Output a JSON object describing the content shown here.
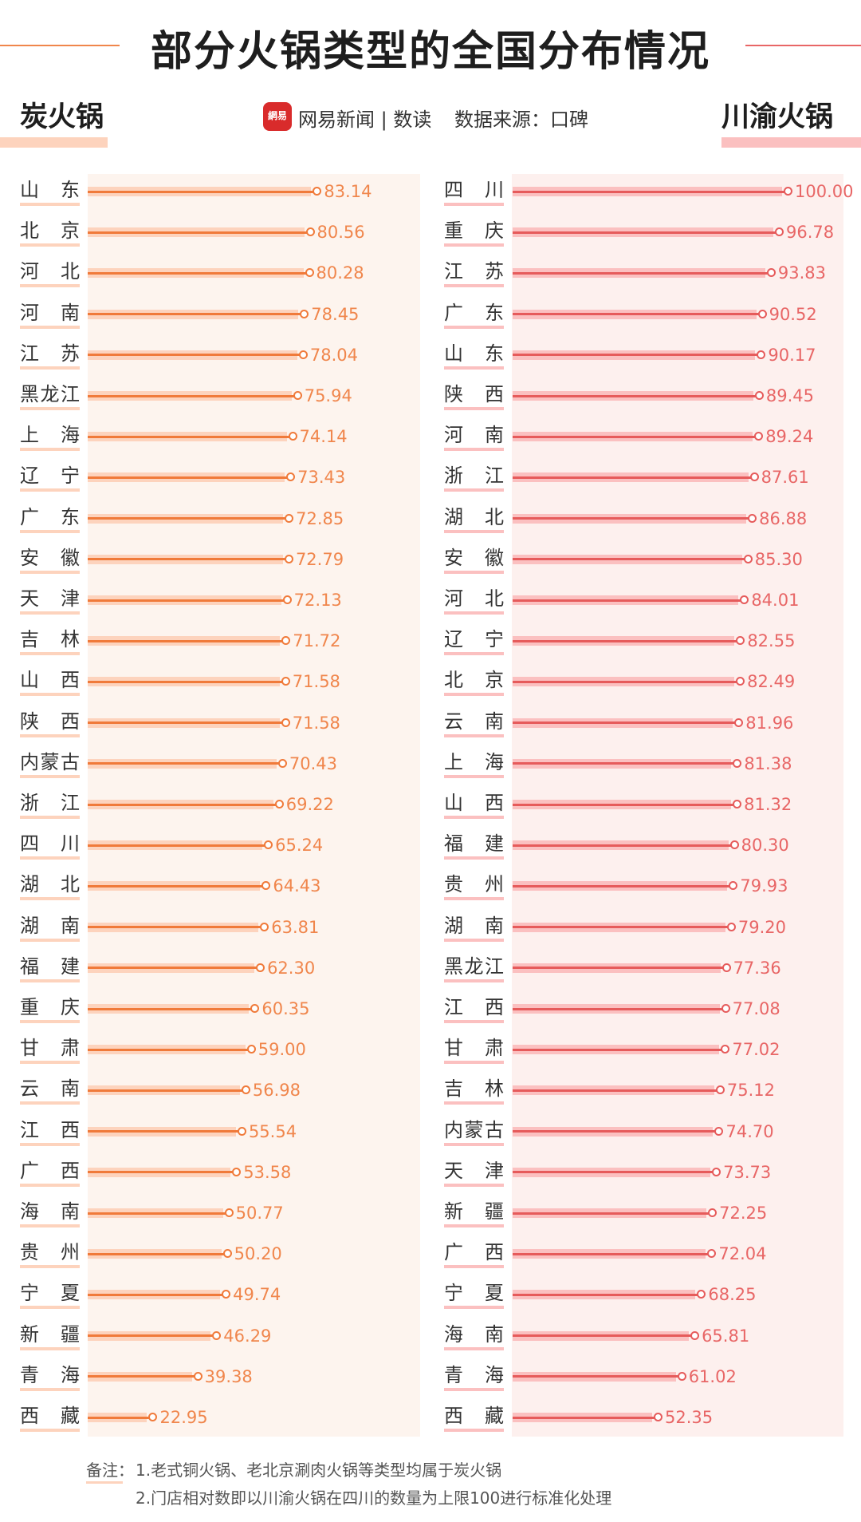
{
  "header": {
    "title": "部分火锅类型的全国分布情况",
    "brand": "网易新闻 | 数读",
    "logo_text": "網易",
    "source": "数据来源：口碑"
  },
  "colors": {
    "left_line": "#f07a3a",
    "left_band": "#fdd3bd",
    "left_text": "#f0864c",
    "left_panel": "#fdf4ee",
    "right_line": "#e65b5b",
    "right_band": "#fbc0c0",
    "right_text": "#e86666",
    "right_panel": "#fdf0ee",
    "title_line_left": "#f0864c",
    "title_line_right": "#e86666"
  },
  "chart_data": [
    {
      "type": "bar",
      "title": "炭火锅",
      "orientation": "horizontal",
      "xlim": [
        0,
        100
      ],
      "categories": [
        "山东",
        "北京",
        "河北",
        "河南",
        "江苏",
        "黑龙江",
        "上海",
        "辽宁",
        "广东",
        "安徽",
        "天津",
        "吉林",
        "山西",
        "陕西",
        "内蒙古",
        "浙江",
        "四川",
        "湖北",
        "湖南",
        "福建",
        "重庆",
        "甘肃",
        "云南",
        "江西",
        "广西",
        "海南",
        "贵州",
        "宁夏",
        "新疆",
        "青海",
        "西藏"
      ],
      "values": [
        83.14,
        80.56,
        80.28,
        78.45,
        78.04,
        75.94,
        74.14,
        73.43,
        72.85,
        72.79,
        72.13,
        71.72,
        71.58,
        71.58,
        70.43,
        69.22,
        65.24,
        64.43,
        63.81,
        62.3,
        60.35,
        59.0,
        56.98,
        55.54,
        53.58,
        50.77,
        50.2,
        49.74,
        46.29,
        39.38,
        22.95
      ],
      "labels": [
        "83.14",
        "80.56",
        "80.28",
        "78.45",
        "78.04",
        "75.94",
        "74.14",
        "73.43",
        "72.85",
        "72.79",
        "72.13",
        "71.72",
        "71.58",
        "71.58",
        "70.43",
        "69.22",
        "65.24",
        "64.43",
        "63.81",
        "62.30",
        "60.35",
        "59.00",
        "56.98",
        "55.54",
        "53.58",
        "50.77",
        "50.20",
        "49.74",
        "46.29",
        "39.38",
        "22.95"
      ]
    },
    {
      "type": "bar",
      "title": "川渝火锅",
      "orientation": "horizontal",
      "xlim": [
        0,
        100
      ],
      "categories": [
        "四川",
        "重庆",
        "江苏",
        "广东",
        "山东",
        "陕西",
        "河南",
        "浙江",
        "湖北",
        "安徽",
        "河北",
        "辽宁",
        "北京",
        "云南",
        "上海",
        "山西",
        "福建",
        "贵州",
        "湖南",
        "黑龙江",
        "江西",
        "甘肃",
        "吉林",
        "内蒙古",
        "天津",
        "新疆",
        "广西",
        "宁夏",
        "海南",
        "青海",
        "西藏"
      ],
      "values": [
        100.0,
        96.78,
        93.83,
        90.52,
        90.17,
        89.45,
        89.24,
        87.61,
        86.88,
        85.3,
        84.01,
        82.55,
        82.49,
        81.96,
        81.38,
        81.32,
        80.3,
        79.93,
        79.2,
        77.36,
        77.08,
        77.02,
        75.12,
        74.7,
        73.73,
        72.25,
        72.04,
        68.25,
        65.81,
        61.02,
        52.35
      ],
      "labels": [
        "100.00",
        "96.78",
        "93.83",
        "90.52",
        "90.17",
        "89.45",
        "89.24",
        "87.61",
        "86.88",
        "85.30",
        "84.01",
        "82.55",
        "82.49",
        "81.96",
        "81.38",
        "81.32",
        "80.30",
        "79.93",
        "79.20",
        "77.36",
        "77.08",
        "77.02",
        "75.12",
        "74.70",
        "73.73",
        "72.25",
        "72.04",
        "68.25",
        "65.81",
        "61.02",
        "52.35"
      ]
    }
  ],
  "footer": {
    "note_label": "备注：",
    "note1": "1.老式铜火锅、老北京涮肉火锅等类型均属于炭火锅",
    "note2": "2.门店相对数即以川渝火锅在四川的数量为上限100进行标准化处理"
  }
}
